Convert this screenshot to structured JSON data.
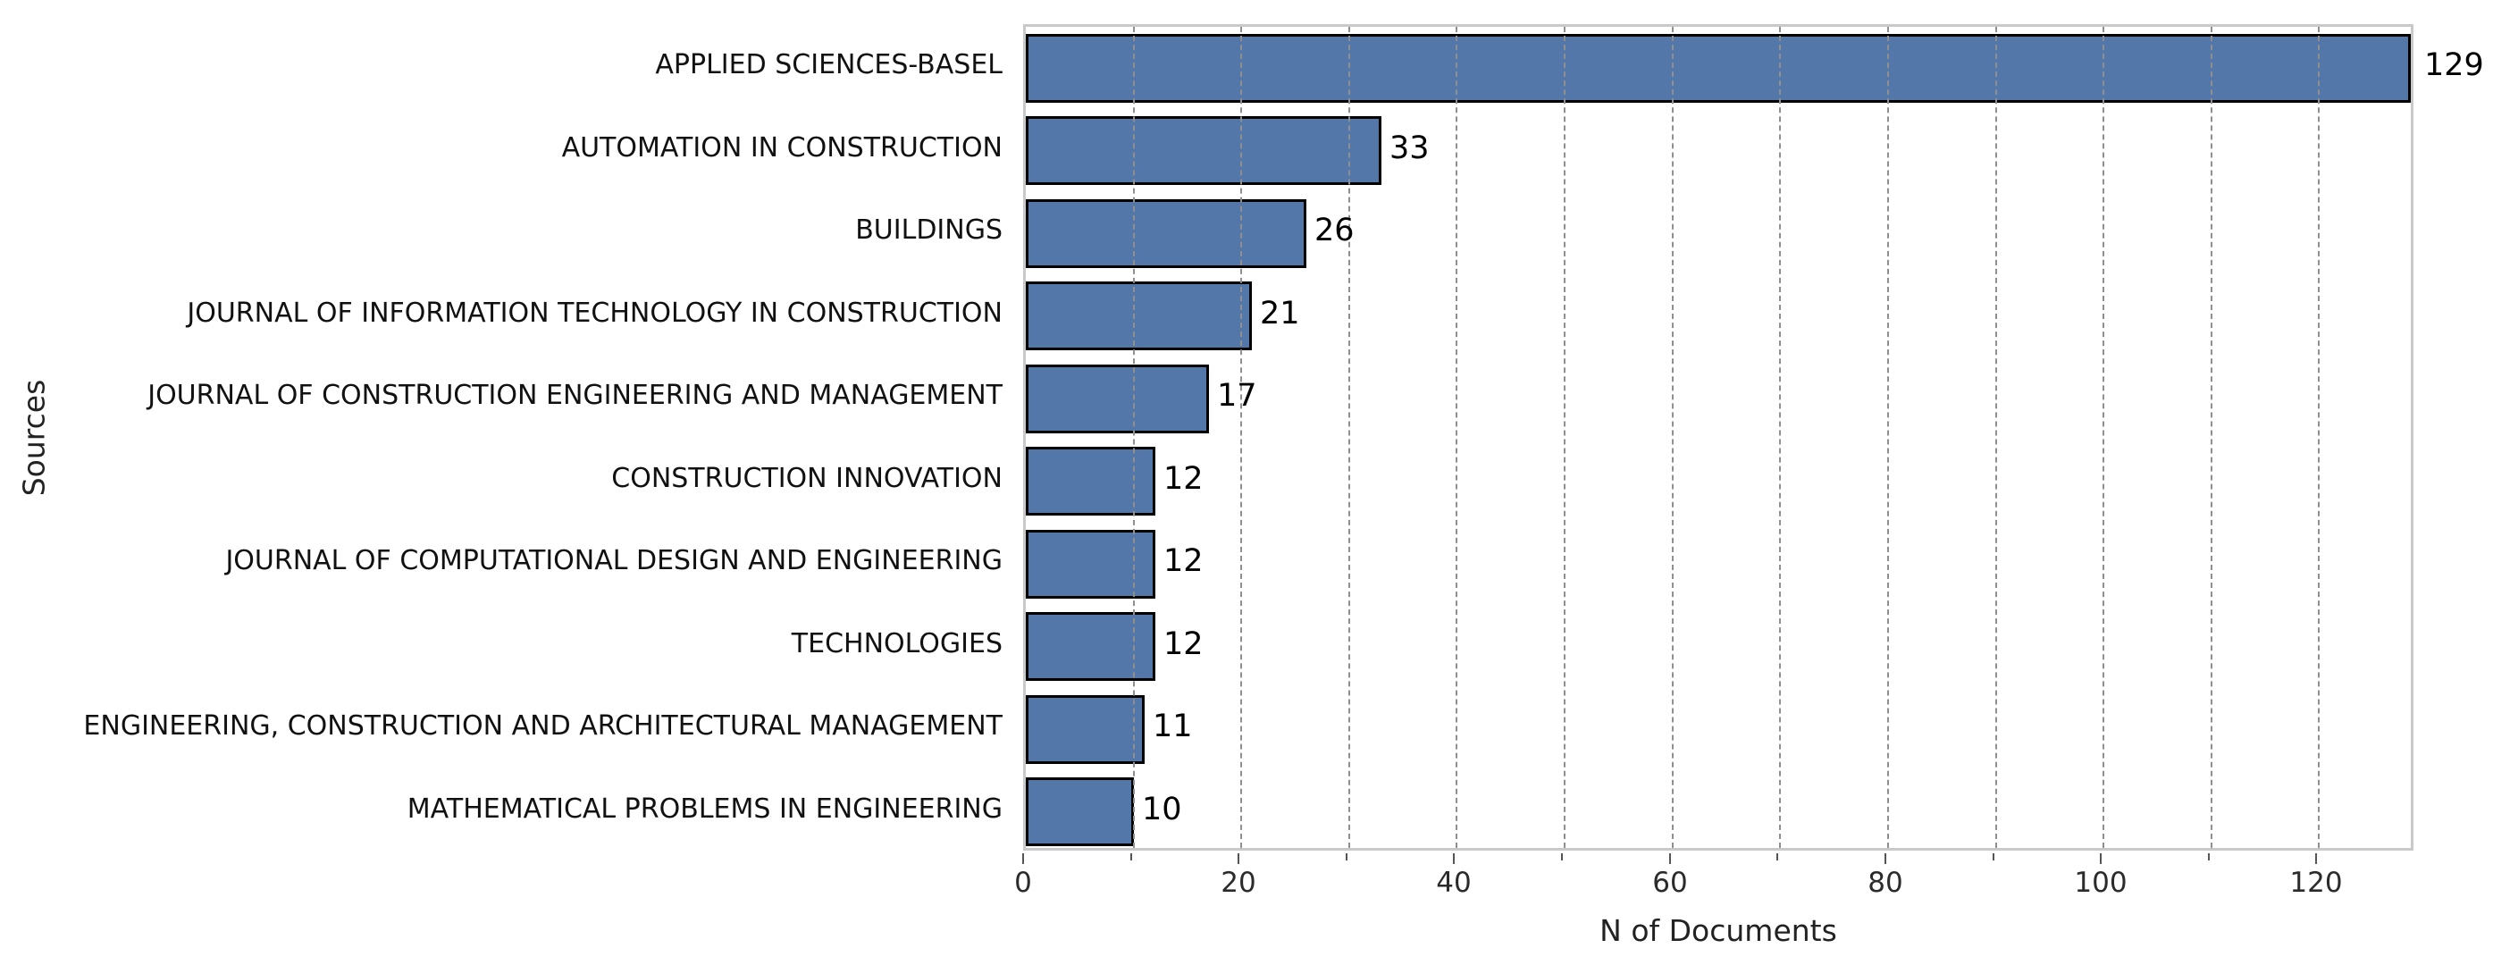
{
  "chart_data": {
    "type": "bar",
    "orientation": "horizontal",
    "title": "",
    "xlabel": "N of Documents",
    "ylabel": "Sources",
    "categories": [
      "APPLIED SCIENCES-BASEL",
      "AUTOMATION IN CONSTRUCTION",
      "BUILDINGS",
      "JOURNAL OF INFORMATION TECHNOLOGY IN CONSTRUCTION",
      "JOURNAL OF CONSTRUCTION ENGINEERING AND MANAGEMENT",
      "CONSTRUCTION INNOVATION",
      "JOURNAL OF COMPUTATIONAL DESIGN AND ENGINEERING",
      "TECHNOLOGIES",
      "ENGINEERING, CONSTRUCTION AND ARCHITECTURAL MANAGEMENT",
      "MATHEMATICAL PROBLEMS IN ENGINEERING"
    ],
    "values": [
      129,
      33,
      26,
      21,
      17,
      12,
      12,
      12,
      11,
      10
    ],
    "value_labels": [
      "129",
      "33",
      "26",
      "21",
      "17",
      "12",
      "12",
      "12",
      "11",
      "10"
    ],
    "xlim": [
      0,
      129
    ],
    "major_xticks": [
      0,
      20,
      40,
      60,
      80,
      100,
      120
    ],
    "major_xtick_labels": [
      "0",
      "20",
      "40",
      "60",
      "80",
      "100",
      "120"
    ],
    "minor_xticks": [
      10,
      30,
      50,
      70,
      90,
      110
    ],
    "gridline_values": [
      10,
      20,
      30,
      40,
      50,
      60,
      70,
      80,
      90,
      100,
      110,
      120
    ],
    "grid_style": "dashed-vertical",
    "legend": null,
    "colors": {
      "bar_fill": "#5277a8",
      "bar_edge": "#000000",
      "grid_line": "#8f8f8f",
      "spine": "#c9c9c9",
      "tick_mark": "#555555",
      "text": "#111111"
    }
  }
}
